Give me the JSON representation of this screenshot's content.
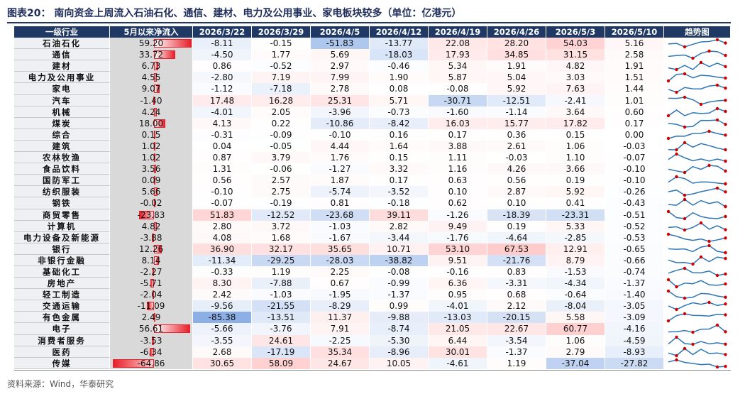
{
  "title": "图表20： 南向资金上周流入石油石化、通信、建材、电力及公用事业、家电板块较多（单位：亿港元）",
  "header": [
    "一级行业",
    "5月以来净流入",
    "2026/3/22",
    "2026/3/29",
    "2026/4/5",
    "2026/4/12",
    "2026/4/19",
    "2026/4/26",
    "2026/5/3",
    "2026/5/10",
    "趋势图"
  ],
  "rows": [
    {
      "name": "石油石化",
      "net": "59.20",
      "weekly": [
        "-8.11",
        "-0.15",
        "-51.83",
        "-13.77",
        "22.08",
        "28.20",
        "54.03",
        "5.16"
      ]
    },
    {
      "name": "通信",
      "net": "33.72",
      "weekly": [
        "-4.50",
        "1.77",
        "5.69",
        "-18.03",
        "17.93",
        "34.85",
        "31.15",
        "2.58"
      ]
    },
    {
      "name": "建材",
      "net": "6.73",
      "weekly": [
        "0.86",
        "-0.52",
        "2.97",
        "-0.46",
        "5.34",
        "1.91",
        "4.82",
        "1.91"
      ]
    },
    {
      "name": "电力及公用事业",
      "net": "4.55",
      "weekly": [
        "-2.80",
        "7.19",
        "7.99",
        "1.90",
        "5.87",
        "5.04",
        "3.03",
        "1.51"
      ]
    },
    {
      "name": "家电",
      "net": "9.07",
      "weekly": [
        "-1.12",
        "-7.18",
        "2.78",
        "0.08",
        "-0.08",
        "5.92",
        "7.63",
        "1.44"
      ]
    },
    {
      "name": "汽车",
      "net": "-1.40",
      "weekly": [
        "17.48",
        "16.28",
        "25.31",
        "5.71",
        "-30.71",
        "-12.51",
        "-2.41",
        "1.01"
      ]
    },
    {
      "name": "机械",
      "net": "4.24",
      "weekly": [
        "-4.01",
        "2.05",
        "-3.96",
        "-0.73",
        "-1.60",
        "-1.14",
        "3.64",
        "0.60"
      ]
    },
    {
      "name": "煤炭",
      "net": "18.00",
      "weekly": [
        "4.13",
        "0.22",
        "-10.86",
        "-8.42",
        "16.03",
        "15.77",
        "17.82",
        "0.17"
      ]
    },
    {
      "name": "综合",
      "net": "0.15",
      "weekly": [
        "-0.31",
        "-0.09",
        "-0.10",
        "0.16",
        "0.17",
        "0.36",
        "0.15",
        "0.00"
      ]
    },
    {
      "name": "建筑",
      "net": "1.02",
      "weekly": [
        "0.04",
        "-0.05",
        "4.44",
        "1.64",
        "3.88",
        "2.61",
        "1.06",
        "-0.03"
      ]
    },
    {
      "name": "农林牧渔",
      "net": "1.02",
      "weekly": [
        "0.87",
        "3.79",
        "1.76",
        "0.15",
        "1.11",
        "-0.03",
        "1.10",
        "-0.07"
      ]
    },
    {
      "name": "食品饮料",
      "net": "3.56",
      "weekly": [
        "1.31",
        "-0.06",
        "-1.27",
        "3.32",
        "1.16",
        "4.26",
        "3.66",
        "-0.10"
      ]
    },
    {
      "name": "国防军工",
      "net": "0.09",
      "weekly": [
        "0.56",
        "2.57",
        "1.87",
        "0.17",
        "0.63",
        "0.56",
        "0.19",
        "-0.10"
      ]
    },
    {
      "name": "纺织服装",
      "net": "5.66",
      "weekly": [
        "-0.10",
        "2.75",
        "-5.74",
        "-3.52",
        "0.10",
        "2.87",
        "5.92",
        "-0.26"
      ]
    },
    {
      "name": "钢铁",
      "net": "-0.02",
      "weekly": [
        "-0.07",
        "-0.19",
        "0.81",
        "-0.18",
        "0.62",
        "0.10",
        "0.41",
        "-0.43"
      ]
    },
    {
      "name": "商贸零售",
      "net": "-23.83",
      "weekly": [
        "51.83",
        "-12.52",
        "-23.68",
        "39.11",
        "-1.26",
        "-18.39",
        "-23.31",
        "-0.51"
      ]
    },
    {
      "name": "计算机",
      "net": "4.82",
      "weekly": [
        "2.80",
        "3.72",
        "-1.03",
        "2.82",
        "9.49",
        "0.19",
        "5.33",
        "-0.52"
      ]
    },
    {
      "name": "电力设备及新能源",
      "net": "-3.88",
      "weekly": [
        "4.08",
        "1.68",
        "-1.67",
        "-3.44",
        "-1.76",
        "-4.64",
        "-2.85",
        "-0.53"
      ]
    },
    {
      "name": "银行",
      "net": "12.26",
      "weekly": [
        "36.90",
        "32.17",
        "35.65",
        "10.71",
        "53.10",
        "67.53",
        "12.91",
        "-0.65"
      ]
    },
    {
      "name": "非银行金融",
      "net": "8.14",
      "weekly": [
        "-11.34",
        "-29.25",
        "-28.03",
        "-38.82",
        "9.51",
        "-21.76",
        "8.79",
        "-0.66"
      ]
    },
    {
      "name": "基础化工",
      "net": "-2.27",
      "weekly": [
        "-0.33",
        "1.19",
        "2.25",
        "-0.08",
        "-0.16",
        "0.83",
        "-1.53",
        "-0.74"
      ]
    },
    {
      "name": "房地产",
      "net": "-5.71",
      "weekly": [
        "8.30",
        "-7.88",
        "0.67",
        "-0.99",
        "6.36",
        "-3.31",
        "-4.34",
        "-1.37"
      ]
    },
    {
      "name": "轻工制造",
      "net": "-2.04",
      "weekly": [
        "2.42",
        "-1.03",
        "-1.95",
        "-1.37",
        "0.95",
        "0.68",
        "-0.64",
        "-1.40"
      ]
    },
    {
      "name": "交通运输",
      "net": "-11.09",
      "weekly": [
        "-9.56",
        "-21.55",
        "-8.29",
        "0.99",
        "-4.01",
        "2.12",
        "-8.04",
        "-3.05"
      ]
    },
    {
      "name": "有色金属",
      "net": "2.49",
      "weekly": [
        "-85.38",
        "-13.51",
        "11.37",
        "-9.88",
        "-13.03",
        "-20.15",
        "5.58",
        "-3.09"
      ]
    },
    {
      "name": "电子",
      "net": "56.61",
      "weekly": [
        "-5.66",
        "-3.76",
        "7.91",
        "-8.74",
        "21.05",
        "22.67",
        "60.77",
        "-4.16"
      ]
    },
    {
      "name": "消费者服务",
      "net": "-3.53",
      "weekly": [
        "-3.55",
        "24.61",
        "-2.25",
        "-5.30",
        "6.44",
        "-3.54",
        "1.06",
        "-4.59"
      ]
    },
    {
      "name": "医药",
      "net": "-6.34",
      "weekly": [
        "2.68",
        "-17.19",
        "35.34",
        "-8.96",
        "30.01",
        "-1.37",
        "2.79",
        "-8.93"
      ]
    },
    {
      "name": "传媒",
      "net": "-64.86",
      "weekly": [
        "30.65",
        "58.09",
        "24.67",
        "10.05",
        "-4.61",
        "1.19",
        "-37.04",
        "-27.82"
      ]
    }
  ],
  "source": "资料来源：Wind，华泰研究"
}
